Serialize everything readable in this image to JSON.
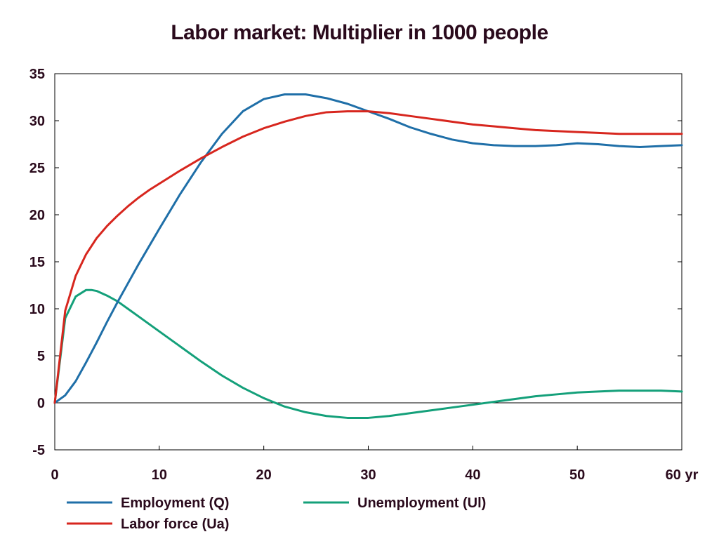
{
  "chart_data": {
    "type": "line",
    "title": "Labor market: Multiplier in 1000 people",
    "xlabel": "",
    "ylabel": "",
    "x_unit_label": "yr",
    "xlim": [
      0,
      60
    ],
    "ylim": [
      -5,
      35
    ],
    "x_ticks": [
      0,
      10,
      20,
      30,
      40,
      50,
      60
    ],
    "y_ticks": [
      -5,
      0,
      5,
      10,
      15,
      20,
      25,
      30,
      35
    ],
    "grid": false,
    "legend_position": "bottom",
    "series": [
      {
        "name": "Employment (Q)",
        "color": "#1f6fa8",
        "x": [
          0,
          1,
          2,
          3,
          4,
          5,
          6,
          7,
          8,
          9,
          10,
          12,
          14,
          16,
          18,
          20,
          22,
          24,
          26,
          28,
          30,
          32,
          34,
          36,
          38,
          40,
          42,
          44,
          46,
          48,
          50,
          52,
          54,
          56,
          58,
          60
        ],
        "y": [
          0,
          0.8,
          2.3,
          4.3,
          6.4,
          8.6,
          10.7,
          12.7,
          14.7,
          16.6,
          18.5,
          22.2,
          25.6,
          28.6,
          31.0,
          32.3,
          32.8,
          32.8,
          32.4,
          31.8,
          31.0,
          30.2,
          29.3,
          28.6,
          28.0,
          27.6,
          27.4,
          27.3,
          27.3,
          27.4,
          27.6,
          27.5,
          27.3,
          27.2,
          27.3,
          27.4
        ]
      },
      {
        "name": "Labor force (Ua)",
        "color": "#d7261e",
        "x": [
          0,
          1,
          2,
          3,
          4,
          5,
          6,
          7,
          8,
          9,
          10,
          12,
          14,
          16,
          18,
          20,
          22,
          24,
          26,
          28,
          30,
          32,
          34,
          36,
          38,
          40,
          42,
          44,
          46,
          48,
          50,
          52,
          54,
          56,
          58,
          60
        ],
        "y": [
          0,
          9.8,
          13.5,
          15.8,
          17.5,
          18.8,
          19.9,
          20.9,
          21.8,
          22.6,
          23.3,
          24.7,
          26.0,
          27.2,
          28.3,
          29.2,
          29.9,
          30.5,
          30.9,
          31.0,
          31.0,
          30.8,
          30.5,
          30.2,
          29.9,
          29.6,
          29.4,
          29.2,
          29.0,
          28.9,
          28.8,
          28.7,
          28.6,
          28.6,
          28.6,
          28.6
        ]
      },
      {
        "name": "Unemployment (Ul)",
        "color": "#14a07a",
        "x": [
          0,
          1,
          2,
          3,
          3.5,
          4,
          5,
          6,
          7,
          8,
          9,
          10,
          12,
          14,
          16,
          18,
          20,
          22,
          24,
          26,
          28,
          30,
          32,
          34,
          36,
          38,
          40,
          42,
          44,
          46,
          48,
          50,
          52,
          54,
          56,
          58,
          60
        ],
        "y": [
          0,
          9.0,
          11.3,
          12.0,
          12.0,
          11.9,
          11.4,
          10.8,
          10.0,
          9.2,
          8.4,
          7.6,
          6.0,
          4.4,
          2.9,
          1.6,
          0.5,
          -0.4,
          -1.0,
          -1.4,
          -1.6,
          -1.6,
          -1.4,
          -1.1,
          -0.8,
          -0.5,
          -0.2,
          0.1,
          0.4,
          0.7,
          0.9,
          1.1,
          1.2,
          1.3,
          1.3,
          1.3,
          1.2
        ]
      }
    ]
  }
}
